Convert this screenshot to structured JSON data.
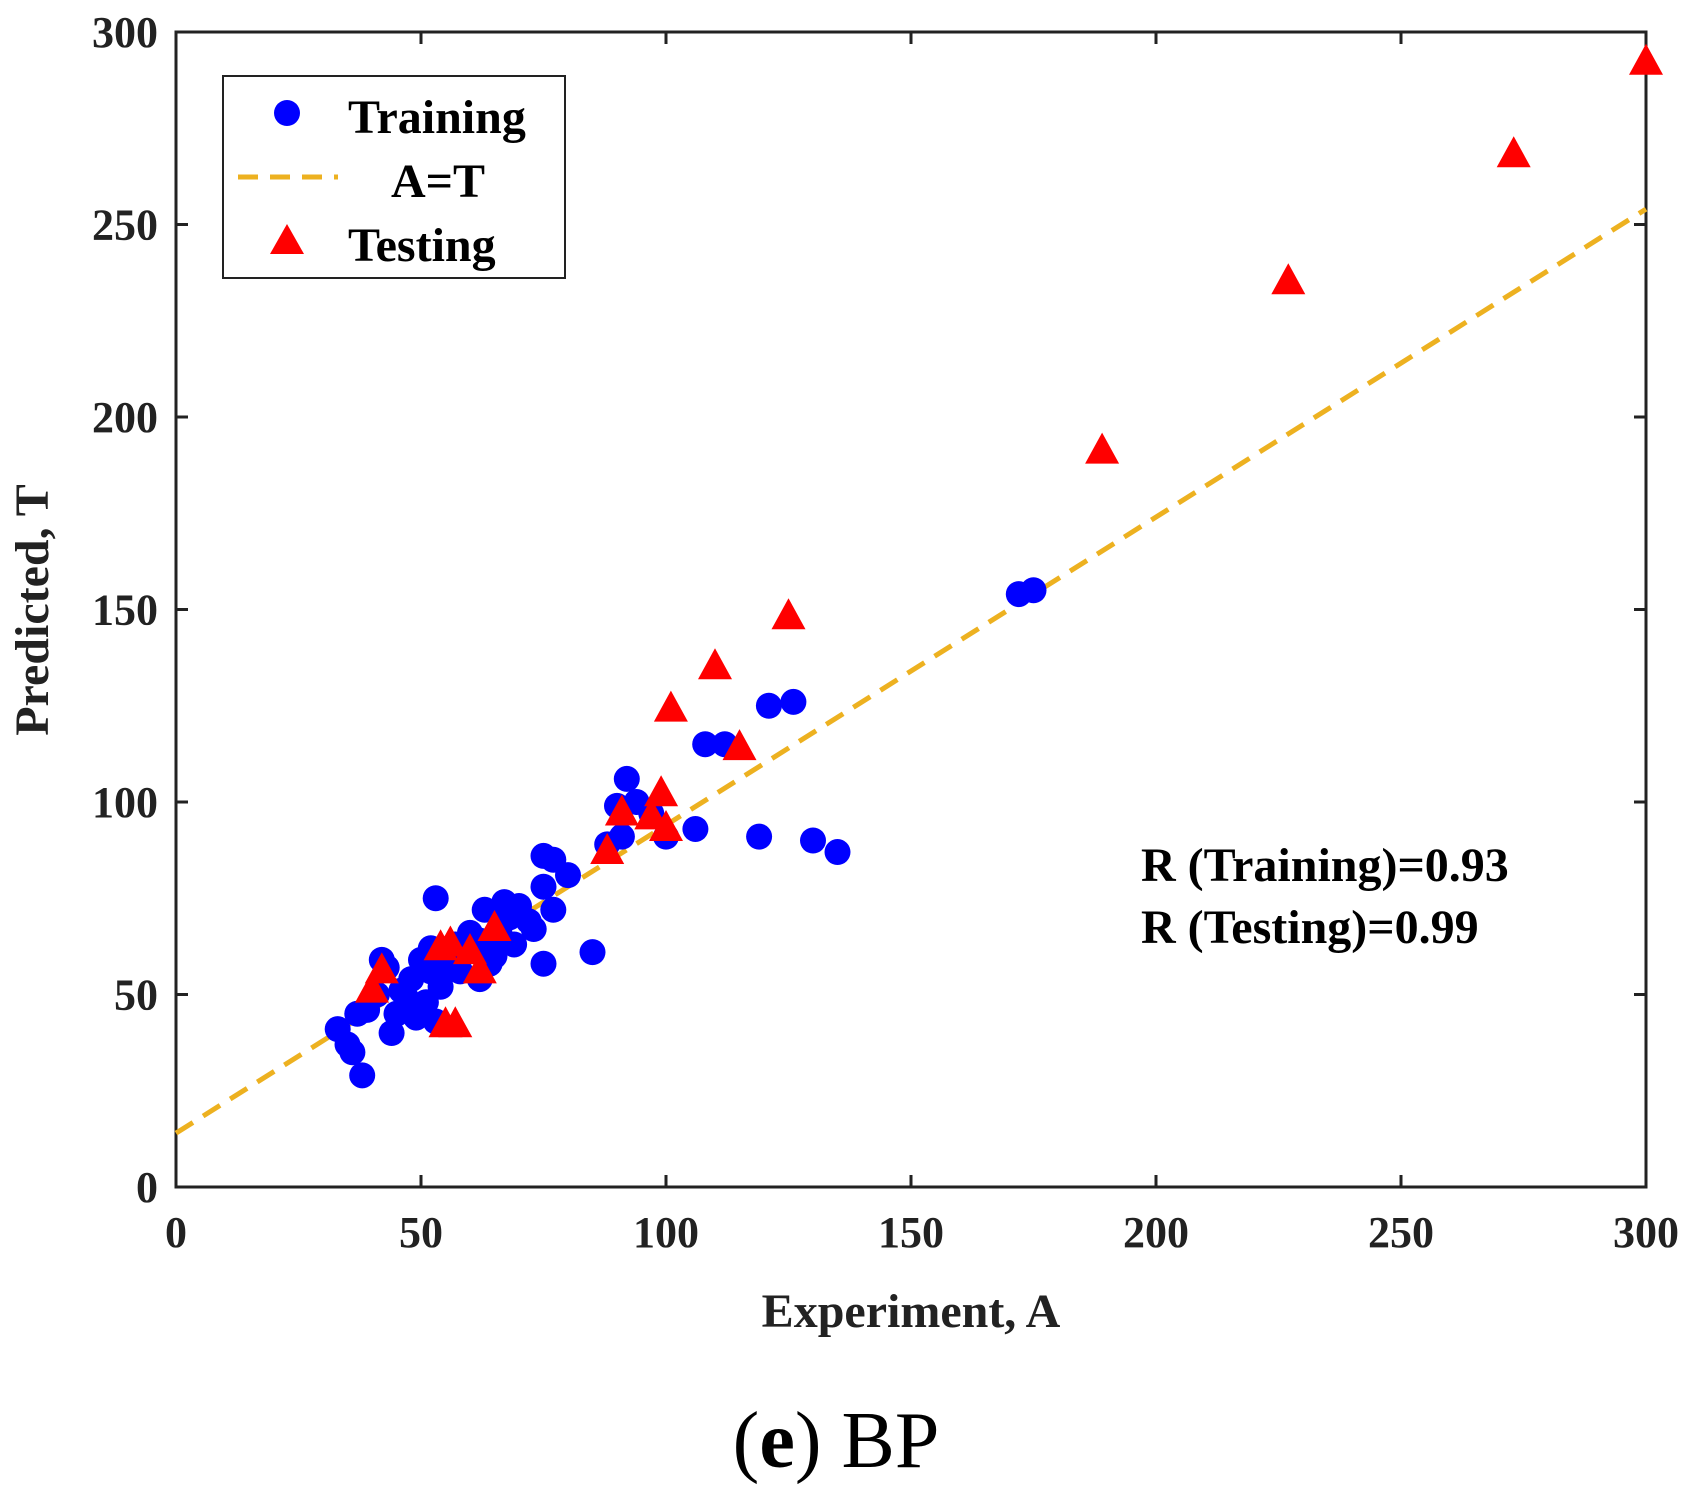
{
  "chart_data": {
    "type": "scatter",
    "title": "",
    "xlabel": "Experiment, A",
    "ylabel": "Predicted, T",
    "xlim": [
      0,
      300
    ],
    "ylim": [
      0,
      300
    ],
    "x_ticks": [
      0,
      50,
      100,
      150,
      200,
      250,
      300
    ],
    "y_ticks": [
      0,
      50,
      100,
      150,
      200,
      250,
      300
    ],
    "grid": false,
    "legend_position": "top-left",
    "legend": [
      "Training",
      "A=T",
      "Testing"
    ],
    "fit_line": {
      "name": "A=T",
      "color": "#EDB120",
      "style": "dashed",
      "points": [
        [
          0,
          14
        ],
        [
          300,
          254
        ]
      ]
    },
    "series": [
      {
        "name": "Training",
        "marker": "circle",
        "color": "#0000FF",
        "points": [
          [
            33,
            41
          ],
          [
            35,
            37
          ],
          [
            36,
            35
          ],
          [
            38,
            29
          ],
          [
            37,
            45
          ],
          [
            39,
            46
          ],
          [
            41,
            50
          ],
          [
            42,
            59
          ],
          [
            43,
            57
          ],
          [
            44,
            40
          ],
          [
            45,
            45
          ],
          [
            46,
            51
          ],
          [
            47,
            49
          ],
          [
            48,
            54
          ],
          [
            49,
            44
          ],
          [
            50,
            46
          ],
          [
            50,
            59
          ],
          [
            51,
            48
          ],
          [
            52,
            56
          ],
          [
            52,
            62
          ],
          [
            53,
            43
          ],
          [
            53,
            75
          ],
          [
            54,
            52
          ],
          [
            55,
            57
          ],
          [
            56,
            60
          ],
          [
            57,
            63
          ],
          [
            58,
            56
          ],
          [
            59,
            61
          ],
          [
            60,
            66
          ],
          [
            61,
            62
          ],
          [
            62,
            64
          ],
          [
            62,
            54
          ],
          [
            63,
            72
          ],
          [
            64,
            58
          ],
          [
            65,
            60
          ],
          [
            66,
            66
          ],
          [
            67,
            74
          ],
          [
            68,
            70
          ],
          [
            69,
            63
          ],
          [
            70,
            73
          ],
          [
            72,
            69
          ],
          [
            73,
            67
          ],
          [
            75,
            58
          ],
          [
            75,
            78
          ],
          [
            75,
            86
          ],
          [
            77,
            85
          ],
          [
            77,
            72
          ],
          [
            80,
            81
          ],
          [
            85,
            61
          ],
          [
            88,
            89
          ],
          [
            90,
            99
          ],
          [
            91,
            91
          ],
          [
            92,
            106
          ],
          [
            94,
            100
          ],
          [
            97,
            97
          ],
          [
            100,
            91
          ],
          [
            106,
            93
          ],
          [
            108,
            115
          ],
          [
            112,
            115
          ],
          [
            119,
            91
          ],
          [
            121,
            125
          ],
          [
            126,
            126
          ],
          [
            130,
            90
          ],
          [
            135,
            87
          ],
          [
            172,
            154
          ],
          [
            175,
            155
          ]
        ]
      },
      {
        "name": "Testing",
        "marker": "triangle",
        "color": "#FF0000",
        "points": [
          [
            40,
            51
          ],
          [
            42,
            56
          ],
          [
            54,
            62
          ],
          [
            55,
            42
          ],
          [
            57,
            42
          ],
          [
            56,
            63
          ],
          [
            60,
            61
          ],
          [
            62,
            56
          ],
          [
            65,
            67
          ],
          [
            88,
            87
          ],
          [
            91,
            97
          ],
          [
            97,
            96
          ],
          [
            99,
            102
          ],
          [
            100,
            93
          ],
          [
            101,
            124
          ],
          [
            110,
            135
          ],
          [
            115,
            114
          ],
          [
            125,
            148
          ],
          [
            189,
            191
          ],
          [
            227,
            235
          ],
          [
            273,
            268
          ],
          [
            300,
            292
          ]
        ]
      }
    ],
    "annotations": [
      "R (Training)=0.93",
      "R (Testing)=0.99"
    ],
    "caption": {
      "label": "e",
      "text": "BP"
    }
  }
}
